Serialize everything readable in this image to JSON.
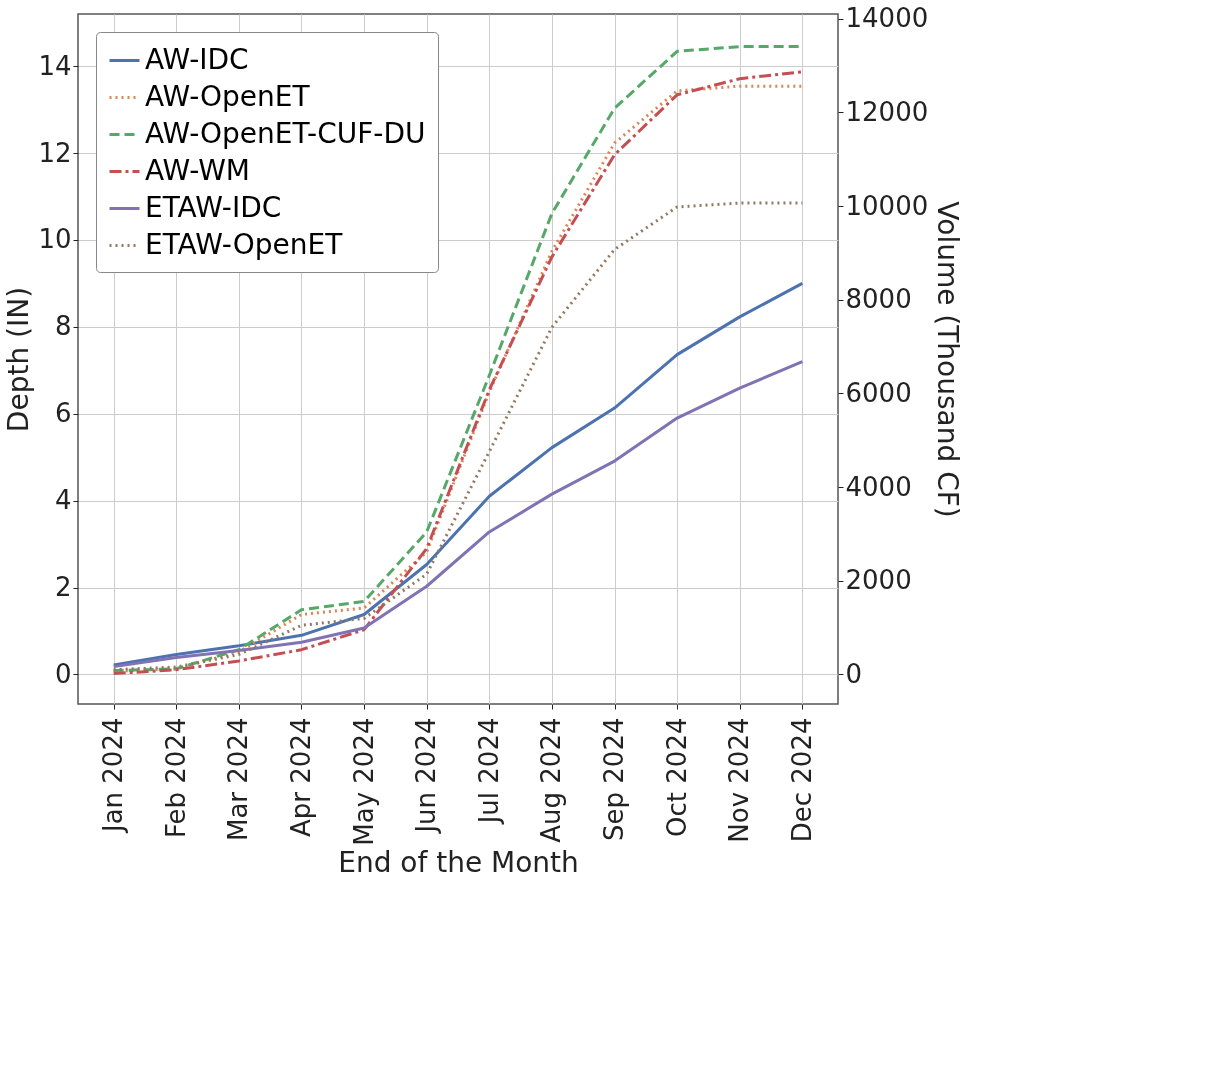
{
  "chart_data": {
    "type": "line",
    "xlabel": "End of the Month",
    "ylabel": "Depth (IN)",
    "y2label": "Volume (Thousand CF)",
    "categories": [
      "Jan 2024",
      "Feb 2024",
      "Mar 2024",
      "Apr 2024",
      "May 2024",
      "Jun 2024",
      "Jul 2024",
      "Aug 2024",
      "Sep 2024",
      "Oct 2024",
      "Nov 2024",
      "Dec 2024"
    ],
    "ylim": [
      -0.68,
      15.2
    ],
    "yticks": [
      0,
      2,
      4,
      6,
      8,
      10,
      12,
      14
    ],
    "y2lim": [
      -630,
      14100
    ],
    "y2ticks": [
      0,
      2000,
      4000,
      6000,
      8000,
      10000,
      12000,
      14000
    ],
    "grid": true,
    "legend": "top left",
    "marker": "none",
    "series": [
      {
        "name": "AW-IDC",
        "color": "#4c72b0",
        "line_style": "solid",
        "values": [
          0.22,
          0.46,
          0.66,
          0.9,
          1.38,
          2.53,
          4.1,
          5.22,
          6.13,
          7.36,
          8.23,
          9.0
        ]
      },
      {
        "name": "AW-OpenET",
        "color": "#dd8452",
        "line_style": "dotted",
        "values": [
          0.07,
          0.13,
          0.52,
          1.38,
          1.53,
          2.82,
          6.5,
          9.74,
          12.23,
          13.43,
          13.54,
          13.54
        ]
      },
      {
        "name": "AW-OpenET-CUF-DU",
        "color": "#55a868",
        "line_style": "dashed",
        "values": [
          0.09,
          0.13,
          0.57,
          1.49,
          1.68,
          3.28,
          6.88,
          10.61,
          13.03,
          14.34,
          14.45,
          14.45
        ]
      },
      {
        "name": "AW-WM",
        "color": "#c44e52",
        "line_style": "dashdot",
        "values": [
          0.02,
          0.11,
          0.31,
          0.57,
          1.03,
          2.9,
          6.55,
          9.61,
          11.96,
          13.34,
          13.71,
          13.87
        ]
      },
      {
        "name": "ETAW-IDC",
        "color": "#8172b3",
        "line_style": "solid",
        "values": [
          0.18,
          0.39,
          0.55,
          0.74,
          1.07,
          2.03,
          3.28,
          4.15,
          4.91,
          5.9,
          6.59,
          7.2
        ]
      },
      {
        "name": "ETAW-OpenET",
        "color": "#937860",
        "line_style": "dotted",
        "values": [
          0.11,
          0.17,
          0.46,
          1.13,
          1.29,
          2.31,
          5.13,
          7.99,
          9.78,
          10.76,
          10.85,
          10.85
        ]
      }
    ]
  }
}
